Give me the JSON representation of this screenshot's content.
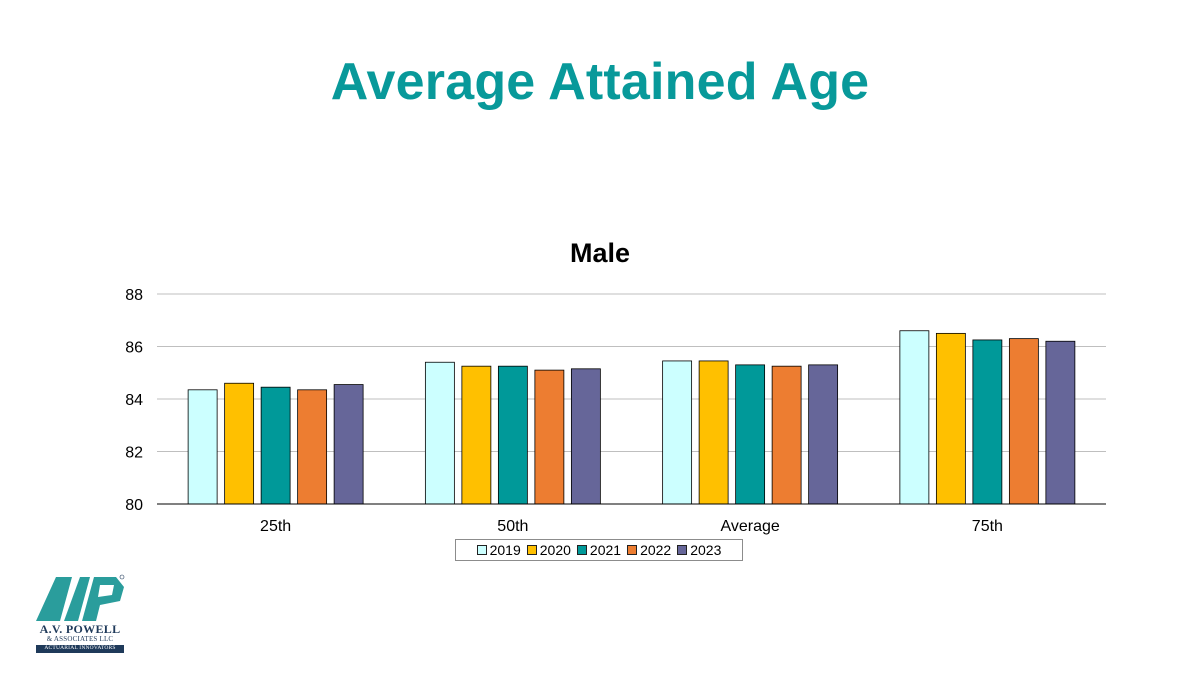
{
  "slide": {
    "title": "Average Attained Age"
  },
  "chart_data": {
    "type": "bar",
    "title": "Male",
    "categories": [
      "25th",
      "50th",
      "Average",
      "75th"
    ],
    "series": [
      {
        "name": "2019",
        "color": "#CCFFFF",
        "values": [
          84.35,
          85.4,
          85.45,
          86.6
        ]
      },
      {
        "name": "2020",
        "color": "#FFC000",
        "values": [
          84.6,
          85.25,
          85.45,
          86.5
        ]
      },
      {
        "name": "2021",
        "color": "#009999",
        "values": [
          84.45,
          85.25,
          85.3,
          86.25
        ]
      },
      {
        "name": "2022",
        "color": "#ED7D31",
        "values": [
          84.35,
          85.1,
          85.25,
          86.3
        ]
      },
      {
        "name": "2023",
        "color": "#666699",
        "values": [
          84.55,
          85.15,
          85.3,
          86.2
        ]
      }
    ],
    "ylim": [
      80,
      88
    ],
    "yticks": [
      80,
      82,
      84,
      86,
      88
    ],
    "grid": true,
    "legend": "bottom"
  },
  "logo": {
    "name": "A.V. POWELL",
    "sub": "& ASSOCIATES LLC",
    "tagline": "ACTUARIAL INNOVATORS",
    "primary_color": "#2A9D9C",
    "secondary_color": "#1F3A5A"
  }
}
